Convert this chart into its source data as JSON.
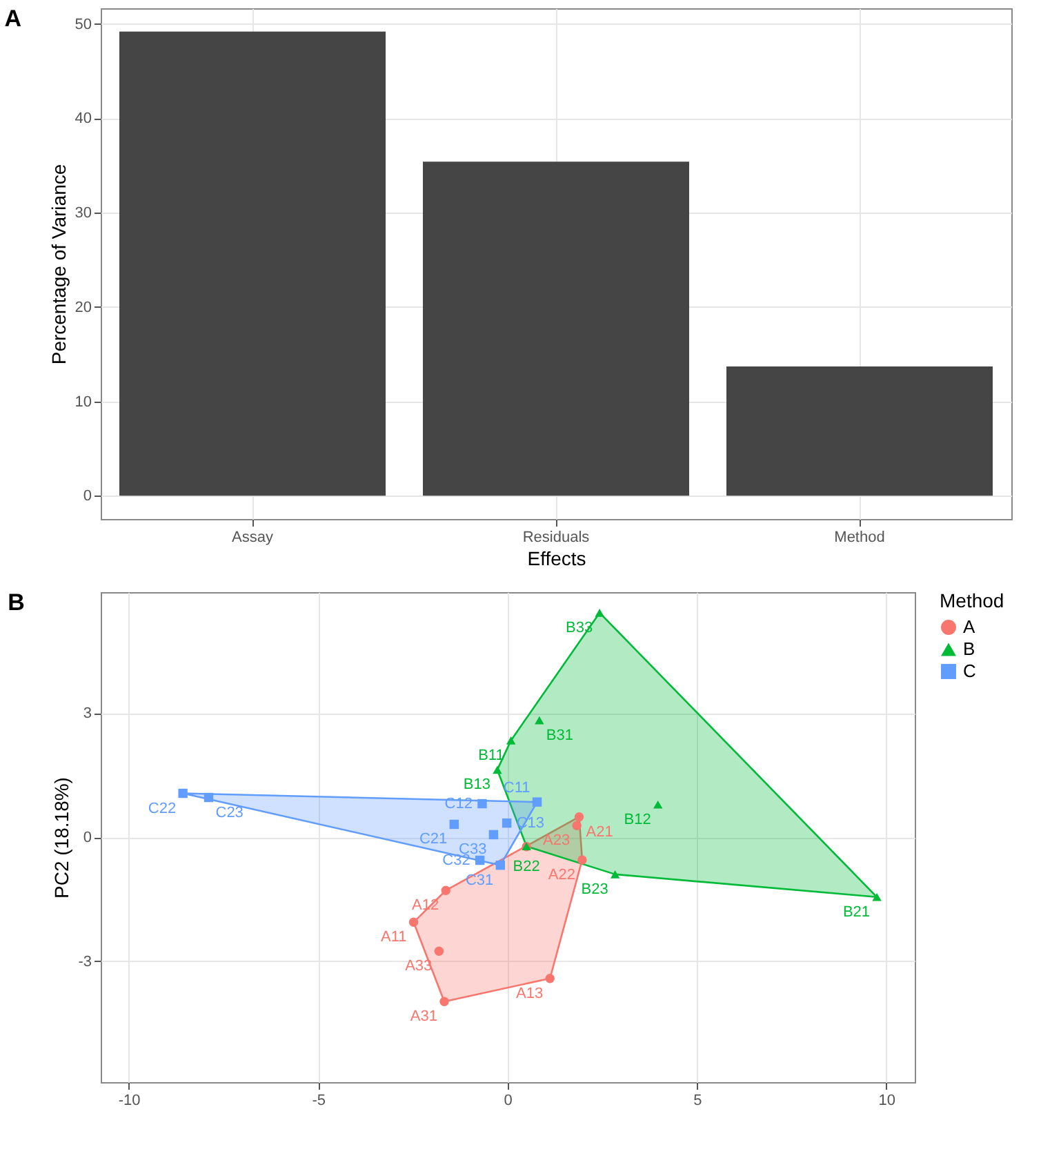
{
  "chart_data": [
    {
      "type": "bar",
      "title": "A",
      "categories": [
        "Assay",
        "Residuals",
        "Method"
      ],
      "values": [
        49.2,
        35.4,
        13.7
      ],
      "color": "#454545",
      "xlabel": "Effects",
      "ylabel": "Percentage of Variance",
      "ylim": [
        -2.46,
        51.66
      ],
      "yticks": [
        0,
        10,
        20,
        30,
        40,
        50
      ],
      "grid": true
    },
    {
      "type": "scatter",
      "title": "B",
      "ylabel": "PC2 (18.18%)",
      "xlim": [
        -10.74,
        10.75
      ],
      "ylim": [
        -5.93,
        5.93
      ],
      "xticks": [
        -10,
        -5,
        0,
        5,
        10
      ],
      "yticks": [
        -3,
        0,
        3
      ],
      "grid": true,
      "legend": "right",
      "legend_title": "Method",
      "series": [
        {
          "name": "A",
          "color": "#f8766d",
          "marker": "circle",
          "x": [
            -2.48,
            -1.63,
            1.12,
            1.89,
            1.97,
            1.83,
            -1.67,
            0.5,
            -1.81
          ],
          "values": [
            -2.06,
            -1.29,
            -3.42,
            0.49,
            -0.55,
            0.28,
            -3.98,
            -0.23,
            -2.76
          ]
        },
        {
          "name": "B",
          "color": "#00ba38",
          "marker": "triangle",
          "x": [
            0.09,
            -0.27,
            3.97,
            9.75,
            0.5,
            2.84,
            0.84,
            2.43
          ],
          "values": [
            2.34,
            1.63,
            0.79,
            -1.45,
            -0.22,
            -0.9,
            2.83,
            5.43
          ]
        },
        {
          "name": "C",
          "color": "#619cff",
          "marker": "square",
          "x": [
            0.78,
            -0.67,
            -0.02,
            -1.41,
            -8.57,
            -7.89,
            -0.19,
            -0.73,
            -0.37
          ],
          "values": [
            0.85,
            0.81,
            0.34,
            0.31,
            1.06,
            0.96,
            -0.68,
            -0.56,
            0.06
          ]
        }
      ],
      "annotations": [
        {
          "text": "A11",
          "x": -2.48,
          "y": -2.06
        },
        {
          "text": "A12",
          "x": -1.63,
          "y": -1.29
        },
        {
          "text": "A13",
          "x": 1.12,
          "y": -3.42
        },
        {
          "text": "A21",
          "x": 1.89,
          "y": 0.49
        },
        {
          "text": "A22",
          "x": 1.97,
          "y": -0.55
        },
        {
          "text": "A23",
          "x": 1.83,
          "y": 0.28
        },
        {
          "text": "A31",
          "x": -1.67,
          "y": -3.98
        },
        {
          "text": "A33",
          "x": -1.81,
          "y": -2.76
        },
        {
          "text": "B13",
          "x": -0.27,
          "y": 1.63
        },
        {
          "text": "B11",
          "x": 0.09,
          "y": 2.34
        },
        {
          "text": "B12",
          "x": 3.97,
          "y": 0.79
        },
        {
          "text": "B21",
          "x": 9.75,
          "y": -1.45
        },
        {
          "text": "B22",
          "x": 0.5,
          "y": -0.22
        },
        {
          "text": "B23",
          "x": 2.84,
          "y": -0.9
        },
        {
          "text": "B31",
          "x": 0.84,
          "y": 2.83
        },
        {
          "text": "B33",
          "x": 2.43,
          "y": 5.43
        },
        {
          "text": "C11",
          "x": 0.78,
          "y": 0.85
        },
        {
          "text": "C12",
          "x": -0.67,
          "y": 0.81
        },
        {
          "text": "C13",
          "x": -0.02,
          "y": 0.34
        },
        {
          "text": "C21",
          "x": -1.41,
          "y": 0.31
        },
        {
          "text": "C22",
          "x": -8.57,
          "y": 1.06
        },
        {
          "text": "C23",
          "x": -7.89,
          "y": 0.96
        },
        {
          "text": "C31",
          "x": -0.19,
          "y": -0.68
        },
        {
          "text": "C32",
          "x": -0.73,
          "y": -0.56
        },
        {
          "text": "C33",
          "x": -0.37,
          "y": 0.06
        }
      ]
    }
  ]
}
